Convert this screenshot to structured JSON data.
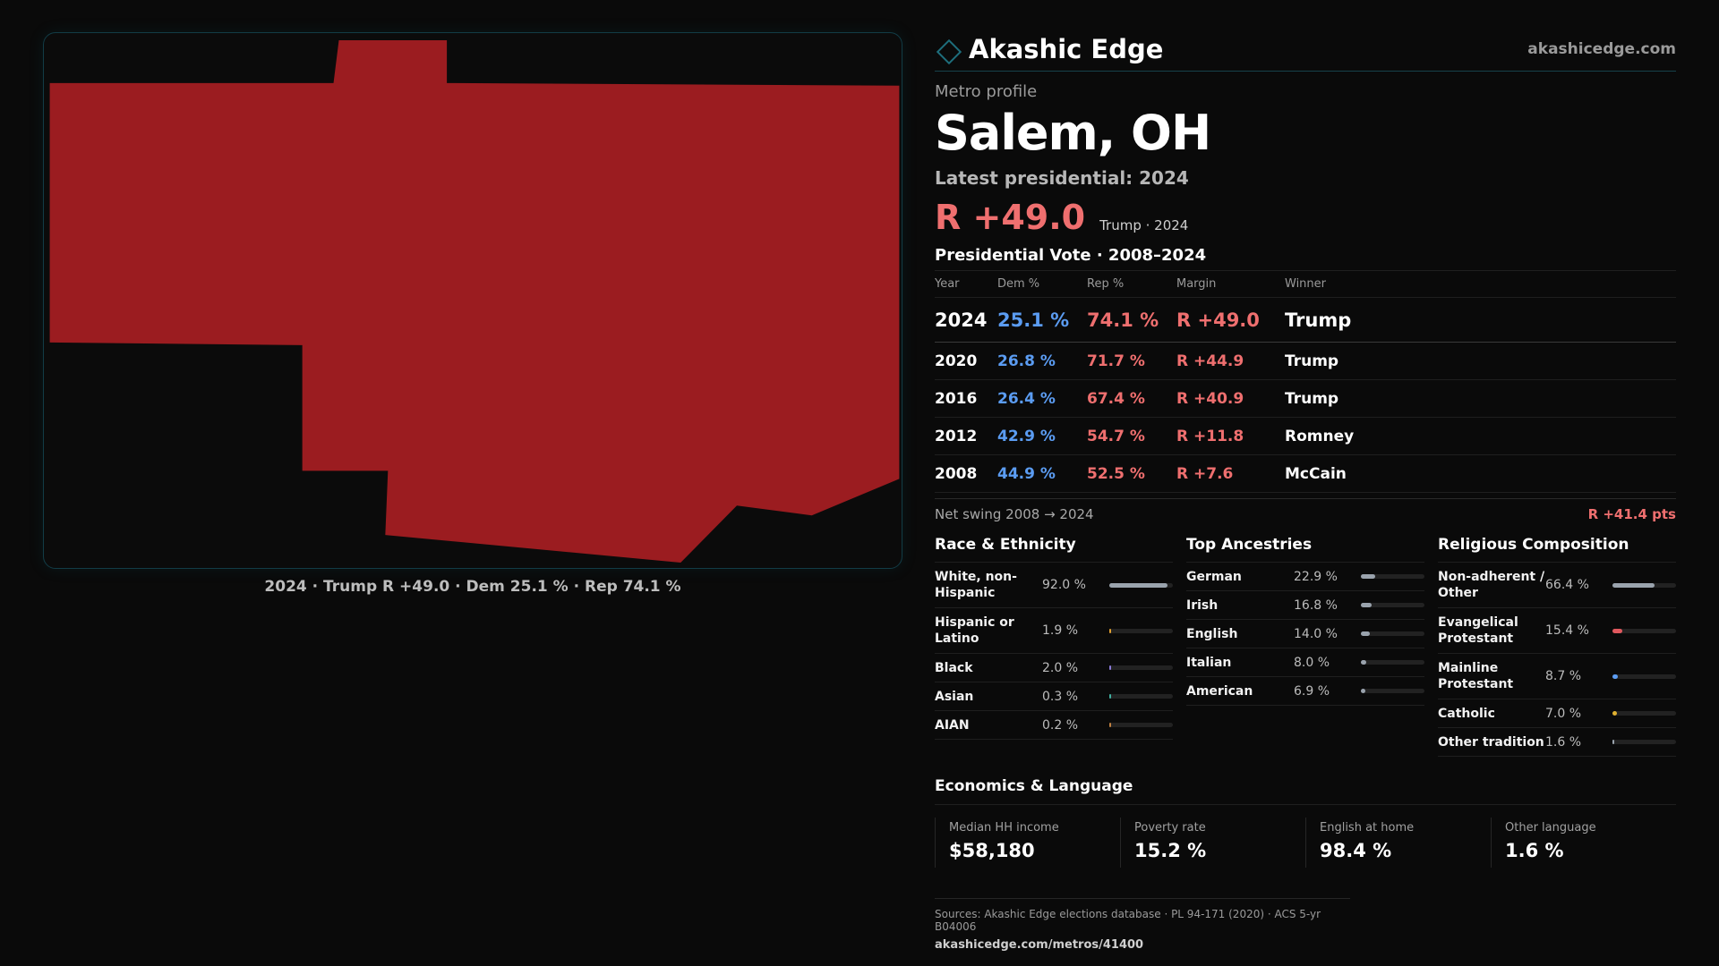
{
  "brand": {
    "name": "Akashic Edge",
    "url": "akashicedge.com"
  },
  "map": {
    "caption": "2024 · Trump R +49.0 · Dem 25.1 % · Rep 74.1 %",
    "fill_color": "#9b1c20"
  },
  "profile": {
    "eyebrow": "Metro profile",
    "title": "Salem, OH",
    "latest": "Latest presidential: 2024",
    "headline_margin": "R +49.0",
    "headline_sub": "Trump · 2024"
  },
  "vote": {
    "title": "Presidential Vote · 2008–2024",
    "headers": {
      "year": "Year",
      "dem": "Dem %",
      "rep": "Rep %",
      "margin": "Margin",
      "winner": "Winner"
    },
    "rows": [
      {
        "year": "2024",
        "dem": "25.1 %",
        "rep": "74.1 %",
        "margin": "R +49.0",
        "winner": "Trump"
      },
      {
        "year": "2020",
        "dem": "26.8 %",
        "rep": "71.7 %",
        "margin": "R +44.9",
        "winner": "Trump"
      },
      {
        "year": "2016",
        "dem": "26.4 %",
        "rep": "67.4 %",
        "margin": "R +40.9",
        "winner": "Trump"
      },
      {
        "year": "2012",
        "dem": "42.9 %",
        "rep": "54.7 %",
        "margin": "R +11.8",
        "winner": "Romney"
      },
      {
        "year": "2008",
        "dem": "44.9 %",
        "rep": "52.5 %",
        "margin": "R +7.6",
        "winner": "McCain"
      }
    ],
    "net_swing_label": "Net swing 2008 → 2024",
    "net_swing_value": "R +41.4 pts"
  },
  "race": {
    "title": "Race & Ethnicity",
    "items": [
      {
        "label": "White, non-Hispanic",
        "value": "92.0 %",
        "pct": 92.0,
        "color": "#9aa3ad"
      },
      {
        "label": "Hispanic or Latino",
        "value": "1.9 %",
        "pct": 1.9,
        "color": "#e0a030"
      },
      {
        "label": "Black",
        "value": "2.0 %",
        "pct": 2.0,
        "color": "#8a7ad8"
      },
      {
        "label": "Asian",
        "value": "0.3 %",
        "pct": 0.3,
        "color": "#40b0a0"
      },
      {
        "label": "AIAN",
        "value": "0.2 %",
        "pct": 0.2,
        "color": "#c08040"
      }
    ]
  },
  "ancestry": {
    "title": "Top Ancestries",
    "items": [
      {
        "label": "German",
        "value": "22.9 %",
        "pct": 22.9,
        "color": "#9aa3ad"
      },
      {
        "label": "Irish",
        "value": "16.8 %",
        "pct": 16.8,
        "color": "#9aa3ad"
      },
      {
        "label": "English",
        "value": "14.0 %",
        "pct": 14.0,
        "color": "#9aa3ad"
      },
      {
        "label": "Italian",
        "value": "8.0 %",
        "pct": 8.0,
        "color": "#9aa3ad"
      },
      {
        "label": "American",
        "value": "6.9 %",
        "pct": 6.9,
        "color": "#9aa3ad"
      }
    ]
  },
  "religion": {
    "title": "Religious Composition",
    "items": [
      {
        "label": "Non-adherent / Other",
        "value": "66.4 %",
        "pct": 66.4,
        "color": "#9aa3ad"
      },
      {
        "label": "Evangelical Protestant",
        "value": "15.4 %",
        "pct": 15.4,
        "color": "#e0585e"
      },
      {
        "label": "Mainline Protestant",
        "value": "8.7 %",
        "pct": 8.7,
        "color": "#5b9cf2"
      },
      {
        "label": "Catholic",
        "value": "7.0 %",
        "pct": 7.0,
        "color": "#e0b030"
      },
      {
        "label": "Other tradition",
        "value": "1.6 %",
        "pct": 1.6,
        "color": "#9aa3ad"
      }
    ]
  },
  "economics": {
    "title": "Economics & Language",
    "cells": [
      {
        "label": "Median HH income",
        "value": "$58,180"
      },
      {
        "label": "Poverty rate",
        "value": "15.2 %"
      },
      {
        "label": "English at home",
        "value": "98.4 %"
      },
      {
        "label": "Other language",
        "value": "1.6 %"
      }
    ]
  },
  "sources": {
    "line": "Sources: Akashic Edge elections database · PL 94-171 (2020) · ACS 5-yr B04006",
    "url": "akashicedge.com/metros/41400"
  }
}
